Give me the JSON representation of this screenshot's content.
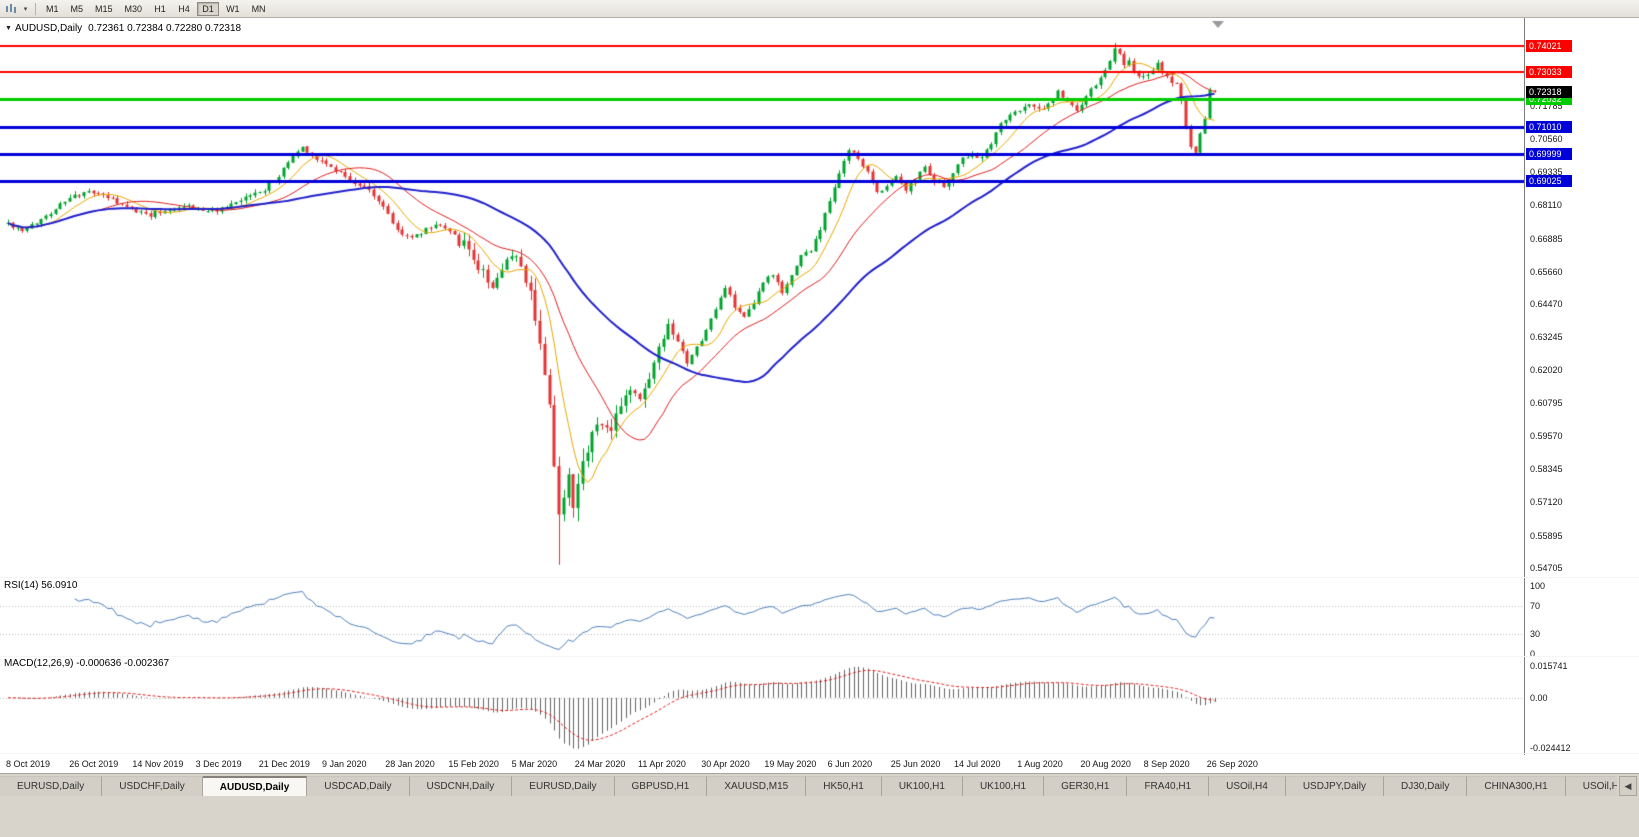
{
  "toolbar": {
    "timeframes": [
      "M1",
      "M5",
      "M15",
      "M30",
      "H1",
      "H4",
      "D1",
      "W1",
      "MN"
    ],
    "active_timeframe": "D1",
    "dropdown_caret": "▾"
  },
  "chart": {
    "collapse_arrow": "▼",
    "symbol": "AUDUSD,Daily",
    "ohlc_text": "0.72361 0.72384 0.72280 0.72318"
  },
  "rsi_panel": {
    "label": "RSI(14) 56.0910",
    "axis_ticks": [
      100,
      70,
      30,
      0
    ]
  },
  "macd_panel": {
    "label": "MACD(12,26,9) -0.000636 -0.002367",
    "axis_ticks": [
      {
        "text": "0.015741",
        "value": 0.015741
      },
      {
        "text": "0.00",
        "value": 0
      },
      {
        "text": "-0.024412",
        "value": -0.024412
      }
    ]
  },
  "tabs": {
    "items": [
      "EURUSD,Daily",
      "USDCHF,Daily",
      "AUDUSD,Daily",
      "USDCAD,Daily",
      "USDCNH,Daily",
      "EURUSD,Daily",
      "GBPUSD,H1",
      "XAUUSD,M15",
      "HK50,H1",
      "UK100,H1",
      "UK100,H1",
      "GER30,H1",
      "FRA40,H1",
      "USOil,H4",
      "USDJPY,Daily",
      "DJ30,Daily",
      "CHINA300,H1",
      "USOil,H1"
    ],
    "active_index": 2,
    "scroll_left_arrow": "◀"
  },
  "chart_data": {
    "type": "candlestick",
    "symbol": "AUDUSD",
    "timeframe": "Daily",
    "ohlc": {
      "open": 0.72361,
      "high": 0.72384,
      "low": 0.7228,
      "close": 0.72318
    },
    "y_axis": {
      "min": 0.544,
      "max": 0.746,
      "ticks": [
        0.71785,
        0.7056,
        0.69335,
        0.6811,
        0.66885,
        0.6566,
        0.6447,
        0.63245,
        0.6202,
        0.60795,
        0.5957,
        0.58345,
        0.5712,
        0.55895,
        0.54705
      ]
    },
    "x_axis": {
      "labels": [
        "8 Oct 2019",
        "26 Oct 2019",
        "14 Nov 2019",
        "3 Dec 2019",
        "21 Dec 2019",
        "9 Jan 2020",
        "28 Jan 2020",
        "15 Feb 2020",
        "5 Mar 2020",
        "24 Mar 2020",
        "11 Apr 2020",
        "30 Apr 2020",
        "19 May 2020",
        "6 Jun 2020",
        "25 Jun 2020",
        "14 Jul 2020",
        "1 Aug 2020",
        "20 Aug 2020",
        "8 Sep 2020",
        "26 Sep 2020"
      ]
    },
    "horizontal_lines": [
      {
        "value": 0.74021,
        "label": "0.74021",
        "color": "#FF0000",
        "width": 2
      },
      {
        "value": 0.73033,
        "label": "0.73033",
        "color": "#FF0000",
        "width": 2
      },
      {
        "value": 0.72032,
        "label": "0.72032",
        "color": "#00CC00",
        "width": 3
      },
      {
        "value": 0.7101,
        "label": "0.71010",
        "color": "#0000D8",
        "width": 3
      },
      {
        "value": 0.69999,
        "label": "0.69999",
        "color": "#0000D8",
        "width": 3
      },
      {
        "value": 0.69025,
        "label": "0.69025",
        "color": "#0000D8",
        "width": 3
      }
    ],
    "current_price": {
      "value": 0.72318,
      "label": "0.72318",
      "box_color": "#000000"
    },
    "candles": {
      "count": 255,
      "seed": 42,
      "up_color": "#00A32E",
      "down_color": "#E33535",
      "price_anchors": [
        [
          0,
          0.6745
        ],
        [
          3,
          0.6712
        ],
        [
          7,
          0.676
        ],
        [
          12,
          0.6828
        ],
        [
          16,
          0.6858
        ],
        [
          20,
          0.6852
        ],
        [
          25,
          0.68
        ],
        [
          30,
          0.6778
        ],
        [
          34,
          0.6798
        ],
        [
          38,
          0.6812
        ],
        [
          42,
          0.6788
        ],
        [
          46,
          0.68
        ],
        [
          50,
          0.6838
        ],
        [
          54,
          0.6872
        ],
        [
          57,
          0.692
        ],
        [
          60,
          0.6995
        ],
        [
          62,
          0.7025
        ],
        [
          64,
          0.7
        ],
        [
          67,
          0.6962
        ],
        [
          70,
          0.6935
        ],
        [
          73,
          0.689
        ],
        [
          76,
          0.6868
        ],
        [
          79,
          0.6808
        ],
        [
          82,
          0.6718
        ],
        [
          85,
          0.669
        ],
        [
          88,
          0.6722
        ],
        [
          91,
          0.6745
        ],
        [
          94,
          0.67
        ],
        [
          97,
          0.6642
        ],
        [
          100,
          0.656
        ],
        [
          102,
          0.6518
        ],
        [
          104,
          0.6555
        ],
        [
          106,
          0.663
        ],
        [
          108,
          0.6585
        ],
        [
          110,
          0.6495
        ],
        [
          112,
          0.632
        ],
        [
          114,
          0.605
        ],
        [
          116,
          0.564
        ],
        [
          117,
          0.576
        ],
        [
          118,
          0.5815
        ],
        [
          119,
          0.5725
        ],
        [
          121,
          0.588
        ],
        [
          123,
          0.5975
        ],
        [
          125,
          0.6018
        ],
        [
          127,
          0.5962
        ],
        [
          129,
          0.6082
        ],
        [
          131,
          0.6135
        ],
        [
          133,
          0.6085
        ],
        [
          135,
          0.6172
        ],
        [
          137,
          0.6272
        ],
        [
          139,
          0.6352
        ],
        [
          141,
          0.6302
        ],
        [
          143,
          0.6225
        ],
        [
          145,
          0.6282
        ],
        [
          147,
          0.6352
        ],
        [
          149,
          0.6425
        ],
        [
          151,
          0.6512
        ],
        [
          153,
          0.6435
        ],
        [
          155,
          0.6392
        ],
        [
          157,
          0.6445
        ],
        [
          159,
          0.6525
        ],
        [
          161,
          0.6555
        ],
        [
          163,
          0.6485
        ],
        [
          165,
          0.6555
        ],
        [
          167,
          0.6625
        ],
        [
          169,
          0.6645
        ],
        [
          171,
          0.6725
        ],
        [
          173,
          0.6825
        ],
        [
          175,
          0.6935
        ],
        [
          177,
          0.7015
        ],
        [
          179,
          0.6985
        ],
        [
          181,
          0.693
        ],
        [
          183,
          0.6862
        ],
        [
          185,
          0.6885
        ],
        [
          187,
          0.6922
        ],
        [
          189,
          0.6872
        ],
        [
          191,
          0.6912
        ],
        [
          193,
          0.6962
        ],
        [
          195,
          0.6902
        ],
        [
          197,
          0.6875
        ],
        [
          199,
          0.6935
        ],
        [
          201,
          0.6985
        ],
        [
          203,
          0.7002
        ],
        [
          205,
          0.6982
        ],
        [
          207,
          0.7045
        ],
        [
          209,
          0.7112
        ],
        [
          211,
          0.7152
        ],
        [
          213,
          0.7162
        ],
        [
          215,
          0.7185
        ],
        [
          217,
          0.7162
        ],
        [
          219,
          0.7188
        ],
        [
          221,
          0.7232
        ],
        [
          223,
          0.7192
        ],
        [
          225,
          0.7162
        ],
        [
          227,
          0.7212
        ],
        [
          229,
          0.7258
        ],
        [
          231,
          0.7305
        ],
        [
          233,
          0.739
        ],
        [
          234,
          0.7378
        ],
        [
          235,
          0.7322
        ],
        [
          236,
          0.7342
        ],
        [
          238,
          0.7282
        ],
        [
          240,
          0.7292
        ],
        [
          242,
          0.7332
        ],
        [
          244,
          0.7282
        ],
        [
          246,
          0.7262
        ],
        [
          247,
          0.7192
        ],
        [
          248,
          0.7092
        ],
        [
          249,
          0.7032
        ],
        [
          250,
          0.7008
        ],
        [
          251,
          0.7078
        ],
        [
          252,
          0.7132
        ],
        [
          253,
          0.7235
        ],
        [
          254,
          0.7232
        ]
      ]
    },
    "moving_averages": [
      {
        "period": 8,
        "color": "#E8A800",
        "width": 1
      },
      {
        "period": 20,
        "color": "#E02020",
        "width": 1
      },
      {
        "period": 45,
        "color": "#2121CC",
        "width": 2
      }
    ],
    "rsi": {
      "period": 14,
      "value": 56.091,
      "color": "#4F81BD",
      "levels": [
        70,
        30
      ],
      "range": [
        0,
        100
      ]
    },
    "macd": {
      "fast": 12,
      "slow": 26,
      "signal_period": 9,
      "main_value": -0.000636,
      "signal_value": -0.002367,
      "histogram_color": "#666666",
      "signal_color": "#E02020",
      "range": [
        -0.0265,
        0.0175
      ]
    }
  }
}
